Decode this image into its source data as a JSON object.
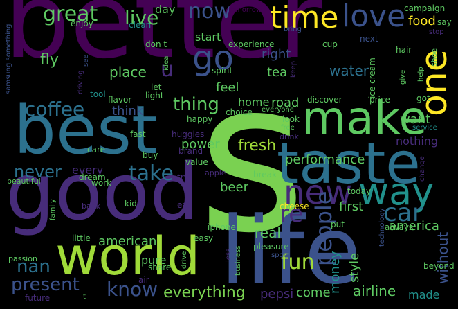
{
  "title": "word cloud",
  "palette": {
    "purple": "#440154",
    "darkpurple": "#472c7a",
    "indigo": "#3b518b",
    "blue": "#2c718e",
    "teal": "#21918c",
    "green": "#27ad81",
    "lime": "#5cc863",
    "yellow": "#aadc32",
    "bright": "#fde725"
  },
  "words": {
    "better": "better",
    "s": "s",
    "best": "best",
    "good": "good",
    "life": "life",
    "taste": "taste",
    "world": "world",
    "make": "make",
    "way": "way",
    "new": "new",
    "time": "time",
    "love": "love",
    "great": "great",
    "now": "now",
    "live": "live",
    "go": "go",
    "one": "one",
    "u": "u",
    "coffee": "coffee",
    "thing": "thing",
    "take": "take",
    "never": "never",
    "nan": "nan",
    "present": "present",
    "know": "know",
    "everything": "everything",
    "fun": "fun",
    "car": "car",
    "people": "people",
    "re": "re",
    "america": "america",
    "airline": "airline",
    "made": "made",
    "first": "first",
    "beer": "beer",
    "fresh": "fresh",
    "performance": "performance",
    "power": "power",
    "american": "american",
    "real": "real",
    "style": "style",
    "money": "money",
    "come": "come",
    "pepsi": "pepsi",
    "without": "without",
    "pure": "pure",
    "day": "day",
    "start": "start",
    "food": "food",
    "campaign": "campaign",
    "tomorrow": "tomorrow",
    "samsung something": "samsung something",
    "enjoy": "enjoy",
    "clean": "clean",
    "bring": "bring",
    "say": "say",
    "stop": "stop",
    "next": "next",
    "cup": "cup",
    "hair": "hair",
    "shoe": "shoe",
    "help": "help",
    "fly": "fly",
    "see": "see",
    "don t": "don t",
    "idea": "idea",
    "experience": "experience",
    "right": "right",
    "spirit": "spirit",
    "tea": "tea",
    "keep": "keep",
    "water": "water",
    "ice cream": "ice cream",
    "give": "give",
    "got": "got",
    "place": "place",
    "let": "let",
    "light": "light",
    "driving": "driving",
    "tool": "tool",
    "flavor": "flavor",
    "feel": "feel",
    "home": "home",
    "road": "road",
    "discover": "discover",
    "price": "price",
    "think": "think",
    "choice": "choice",
    "everyone": "everyone",
    "look": "look",
    "free": "free",
    "drink": "drink",
    "want": "want",
    "service": "service",
    "happy": "happy",
    "fast": "fast",
    "huggies": "huggies",
    "care": "care",
    "buy": "buy",
    "brand": "brand",
    "nothing": "nothing",
    "break": "break",
    "change": "change",
    "every": "every",
    "value": "value",
    "apple": "apple",
    "beautiful": "beautiful",
    "dream": "dream",
    "try": "try",
    "work": "work",
    "today": "today",
    "family": "family",
    "bank": "bank",
    "kid": "kid",
    "eat": "eat",
    "cheese": "cheese",
    "technology": "technology",
    "put": "put",
    "iphone": "iphone",
    "easy": "easy",
    "little": "little",
    "always": "always",
    "less": "less",
    "drive": "drive",
    "passion": "passion",
    "share": "share",
    "business": "business",
    "pleasure": "pleasure",
    "sport": "sport",
    "beyond": "beyond",
    "air": "air",
    "future": "future",
    "t": "t"
  }
}
